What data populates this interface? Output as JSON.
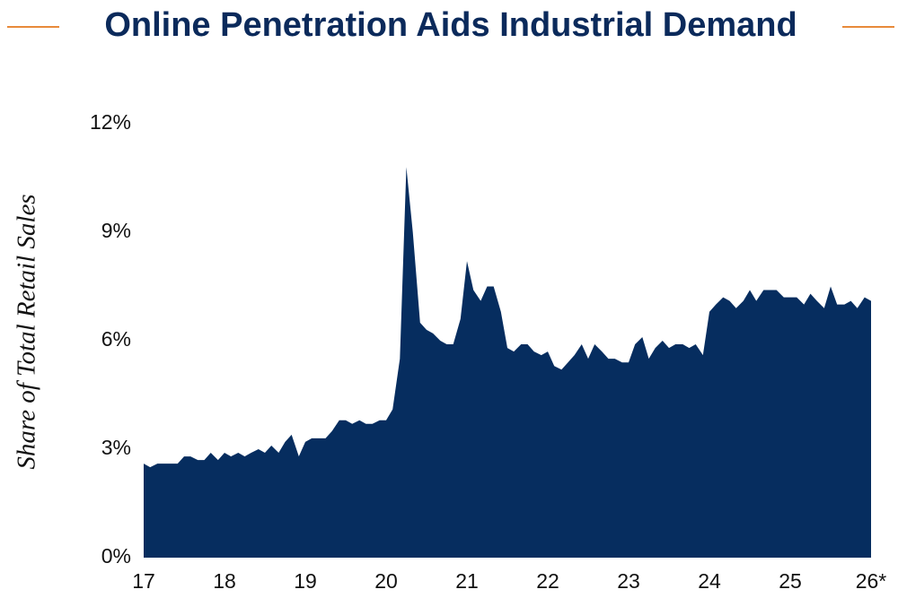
{
  "chart_data": {
    "type": "area",
    "title": "Online Penetration Aids Industrial Demand",
    "y_label": "Share of Total Retail Sales",
    "color": "#062d5f",
    "x": [
      17,
      17.08,
      17.17,
      17.25,
      17.33,
      17.42,
      17.5,
      17.58,
      17.67,
      17.75,
      17.83,
      17.92,
      18,
      18.08,
      18.17,
      18.25,
      18.33,
      18.42,
      18.5,
      18.58,
      18.67,
      18.75,
      18.83,
      18.92,
      19,
      19.08,
      19.17,
      19.25,
      19.33,
      19.42,
      19.5,
      19.58,
      19.67,
      19.75,
      19.83,
      19.92,
      20,
      20.08,
      20.17,
      20.25,
      20.33,
      20.42,
      20.5,
      20.58,
      20.67,
      20.75,
      20.83,
      20.92,
      21,
      21.08,
      21.17,
      21.25,
      21.33,
      21.42,
      21.5,
      21.58,
      21.67,
      21.75,
      21.83,
      21.92,
      22,
      22.08,
      22.17,
      22.25,
      22.33,
      22.42,
      22.5,
      22.58,
      22.67,
      22.75,
      22.83,
      22.92,
      23,
      23.08,
      23.17,
      23.25,
      23.33,
      23.42,
      23.5,
      23.58,
      23.67,
      23.75,
      23.83,
      23.92,
      24,
      24.08,
      24.17,
      24.25,
      24.33,
      24.42,
      24.5,
      24.58,
      24.67,
      24.75,
      24.83,
      24.92,
      25,
      25.08,
      25.17,
      25.25,
      25.33,
      25.42,
      25.5,
      25.58,
      25.67,
      25.75,
      25.83,
      25.92,
      26
    ],
    "values": [
      2.6,
      2.5,
      2.6,
      2.6,
      2.6,
      2.6,
      2.8,
      2.8,
      2.7,
      2.7,
      2.9,
      2.7,
      2.9,
      2.8,
      2.9,
      2.8,
      2.9,
      3.0,
      2.9,
      3.1,
      2.9,
      3.2,
      3.4,
      2.8,
      3.2,
      3.3,
      3.3,
      3.3,
      3.5,
      3.8,
      3.8,
      3.7,
      3.8,
      3.7,
      3.7,
      3.8,
      3.8,
      4.1,
      5.5,
      10.8,
      9.0,
      6.5,
      6.3,
      6.2,
      6.0,
      5.9,
      5.9,
      6.6,
      8.2,
      7.4,
      7.1,
      7.5,
      7.5,
      6.8,
      5.8,
      5.7,
      5.9,
      5.9,
      5.7,
      5.6,
      5.7,
      5.3,
      5.2,
      5.4,
      5.6,
      5.9,
      5.5,
      5.9,
      5.7,
      5.5,
      5.5,
      5.4,
      5.4,
      5.9,
      6.1,
      5.5,
      5.8,
      6.0,
      5.8,
      5.9,
      5.9,
      5.8,
      5.9,
      5.6,
      6.8,
      7.0,
      7.2,
      7.1,
      6.9,
      7.1,
      7.4,
      7.1,
      7.4,
      7.4,
      7.4,
      7.2,
      7.2,
      7.2,
      7.0,
      7.3,
      7.1,
      6.9,
      7.5,
      7.0,
      7.0,
      7.1,
      6.9,
      7.2,
      7.1
    ],
    "xlim": [
      17,
      26
    ],
    "xticks": [
      17,
      18,
      19,
      20,
      21,
      22,
      23,
      24,
      25,
      {
        "value": 26,
        "label": "26*"
      }
    ],
    "ylim": [
      0,
      12
    ],
    "yticks": [
      {
        "value": 0,
        "label": "0%"
      },
      {
        "value": 3,
        "label": "3%"
      },
      {
        "value": 6,
        "label": "6%"
      },
      {
        "value": 9,
        "label": "9%"
      },
      {
        "value": 12,
        "label": "12%"
      }
    ]
  }
}
